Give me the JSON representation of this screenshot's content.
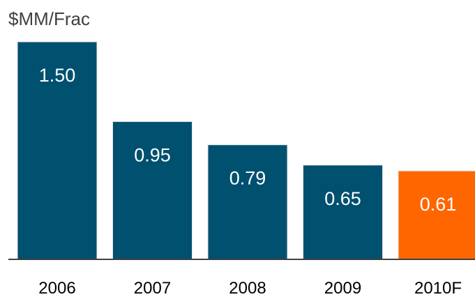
{
  "chart_data": {
    "type": "bar",
    "unit_label": "$MM/Frac",
    "categories": [
      "2006",
      "2007",
      "2008",
      "2009",
      "2010F"
    ],
    "values": [
      1.5,
      0.95,
      0.79,
      0.65,
      0.61
    ],
    "value_labels": [
      "1.50",
      "0.95",
      "0.79",
      "0.65",
      "0.61"
    ],
    "ylim": [
      0,
      1.5
    ],
    "grid": false,
    "legend": "none",
    "colors": {
      "bar": "#00506F",
      "highlight": "#FF6600",
      "axis": "#404040"
    },
    "highlight_index": 4
  }
}
